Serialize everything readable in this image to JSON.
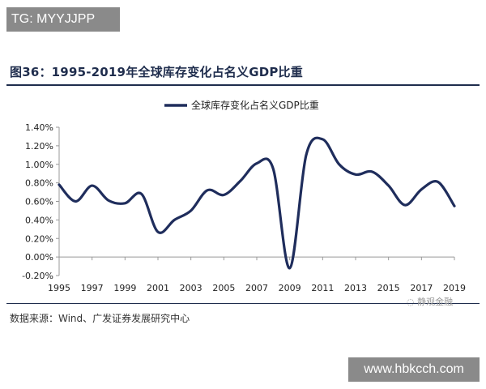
{
  "badges": {
    "top_left": "TG: MYYJJPP",
    "bottom_right": "www.hbkcch.com"
  },
  "figure": {
    "title": "图36：1995-2019年全球库存变化占名义GDP比重",
    "source": "数据来源：Wind、广发证券发展研究中心",
    "watermark": "静观金融"
  },
  "colors": {
    "series": "#1f2d5c",
    "title": "#1f2d4d",
    "axis": "#999999"
  },
  "chart_data": {
    "type": "line",
    "title": "",
    "xlabel": "",
    "ylabel": "",
    "legend": {
      "position": "top-center",
      "entries": [
        "全球库存变化占名义GDP比重"
      ]
    },
    "grid": false,
    "x": [
      1995,
      1996,
      1997,
      1998,
      1999,
      2000,
      2001,
      2002,
      2003,
      2004,
      2005,
      2006,
      2007,
      2008,
      2009,
      2010,
      2011,
      2012,
      2013,
      2014,
      2015,
      2016,
      2017,
      2018,
      2019
    ],
    "x_ticks": [
      "1995",
      "1997",
      "1999",
      "2001",
      "2003",
      "2005",
      "2007",
      "2009",
      "2011",
      "2013",
      "2015",
      "2017",
      "2019"
    ],
    "xlim": [
      1995,
      2019
    ],
    "ylim": [
      -0.2,
      1.4
    ],
    "y_ticks": [
      "-0.20%",
      "0.00%",
      "0.20%",
      "0.40%",
      "0.60%",
      "0.80%",
      "1.00%",
      "1.20%",
      "1.40%"
    ],
    "series": [
      {
        "name": "全球库存变化占名义GDP比重",
        "values": [
          0.78,
          0.6,
          0.77,
          0.61,
          0.58,
          0.68,
          0.27,
          0.4,
          0.5,
          0.72,
          0.67,
          0.82,
          1.01,
          0.95,
          -0.12,
          1.1,
          1.27,
          1.0,
          0.89,
          0.92,
          0.77,
          0.56,
          0.73,
          0.81,
          0.55
        ]
      }
    ]
  }
}
